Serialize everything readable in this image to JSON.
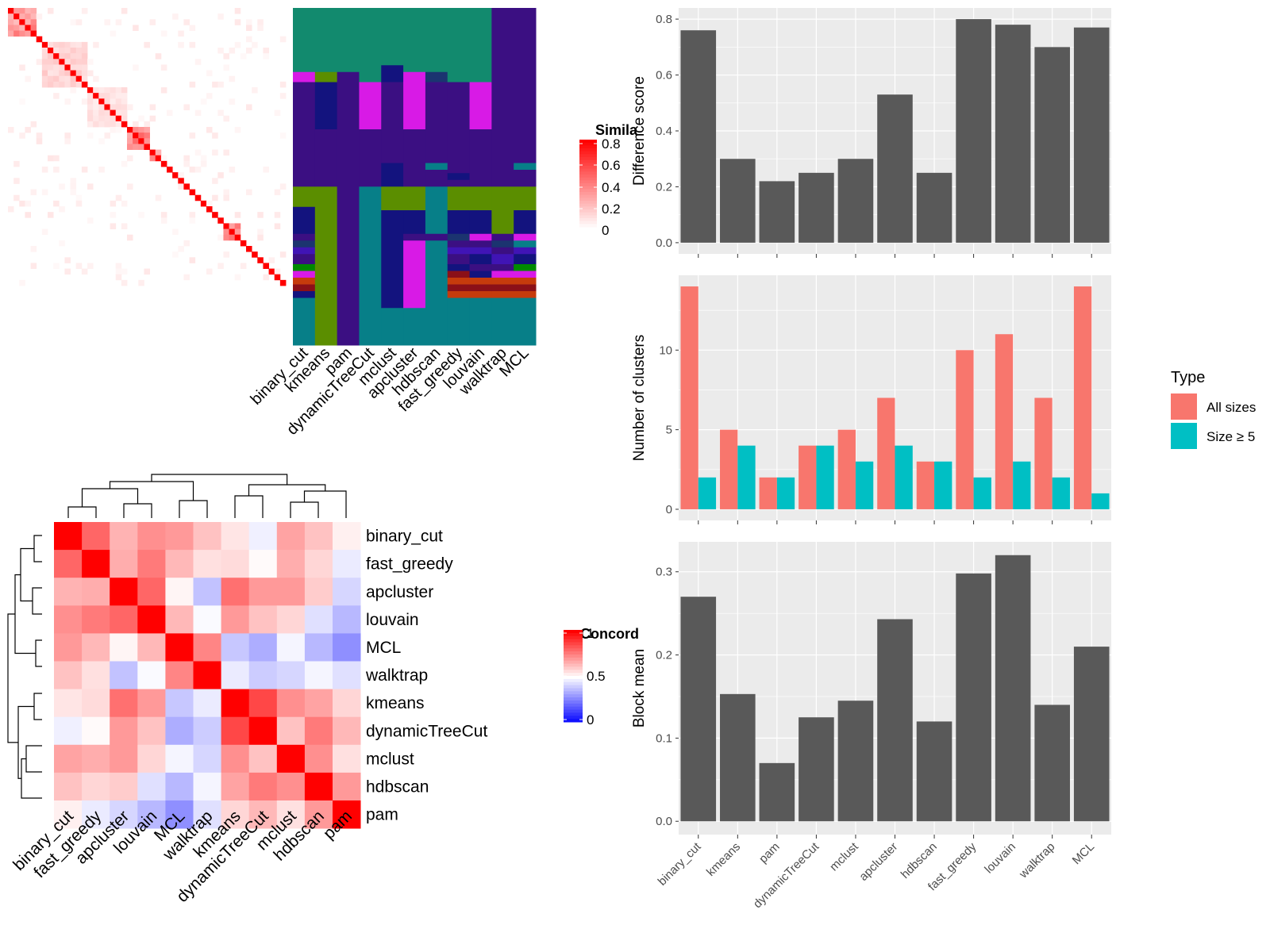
{
  "methods_top": [
    "binary_cut",
    "kmeans",
    "pam",
    "dynamicTreeCut",
    "mclust",
    "apcluster",
    "hdbscan",
    "fast_greedy",
    "louvain",
    "walktrap",
    "MCL"
  ],
  "similarity_legend": {
    "title": "Simila",
    "ticks": [
      "0.8",
      "0.6",
      "0.4",
      "0.2",
      "0"
    ],
    "colors": [
      "#ffffff",
      "#ff0000"
    ]
  },
  "concordance_legend": {
    "title": "Concord",
    "ticks": [
      "1",
      "0.5",
      "0"
    ],
    "colors": [
      "#0000ff",
      "#ffffff",
      "#ff0000"
    ]
  },
  "type_legend": {
    "title": "Type",
    "items": [
      {
        "label": "All sizes",
        "color": "#f8766d"
      },
      {
        "label": "Size ≥ 5",
        "color": "#00bfc4"
      }
    ]
  },
  "chart_data": [
    {
      "type": "heatmap",
      "name_hint": "term similarity matrix",
      "colorscale": [
        "#ffffff",
        "#ff0000"
      ],
      "range": [
        0,
        0.8
      ],
      "n": 49,
      "blocks": [
        [
          0,
          5,
          0.45
        ],
        [
          6,
          14,
          0.18
        ],
        [
          14,
          21,
          0.12
        ],
        [
          21,
          25,
          0.5
        ],
        [
          25,
          27,
          0.4
        ],
        [
          38,
          41,
          0.45
        ]
      ]
    },
    {
      "type": "heatmap",
      "name_hint": "cluster membership per method",
      "columns": [
        "binary_cut",
        "kmeans",
        "pam",
        "dynamicTreeCut",
        "mclust",
        "apcluster",
        "hdbscan",
        "fast_greedy",
        "louvain",
        "walktrap",
        "MCL"
      ],
      "palette": {
        "A": "#128a6e",
        "B": "#3b0f82",
        "C": "#d81ae6",
        "D": "#13137e",
        "E": "#5b8e00",
        "F": "#077f88",
        "G": "#1b3470",
        "H": "#c63b0c",
        "I": "#8b1018",
        "J": "#008a00",
        "K": "#4014b5"
      },
      "segments": [
        [
          "binary_cut",
          [
            [
              0,
              19,
              "A"
            ],
            [
              19,
              22,
              "C"
            ],
            [
              22,
              53,
              "B"
            ],
            [
              53,
              59,
              "E"
            ],
            [
              59,
              67,
              "D"
            ],
            [
              67,
              69,
              "B"
            ],
            [
              69,
              71,
              "G"
            ],
            [
              71,
              73,
              "K"
            ],
            [
              73,
              76,
              "B"
            ],
            [
              76,
              78,
              "J"
            ],
            [
              78,
              80,
              "C"
            ],
            [
              80,
              82,
              "H"
            ],
            [
              82,
              84,
              "I"
            ],
            [
              84,
              86,
              "D"
            ],
            [
              86,
              100,
              "F"
            ]
          ]
        ],
        [
          "kmeans",
          [
            [
              0,
              19,
              "A"
            ],
            [
              19,
              22,
              "E"
            ],
            [
              22,
              36,
              "D"
            ],
            [
              36,
              53,
              "B"
            ],
            [
              53,
              100,
              "E"
            ]
          ]
        ],
        [
          "pam",
          [
            [
              0,
              19,
              "A"
            ],
            [
              19,
              100,
              "B"
            ]
          ]
        ],
        [
          "dynamicTreeCut",
          [
            [
              0,
              22,
              "A"
            ],
            [
              22,
              36,
              "C"
            ],
            [
              36,
              53,
              "B"
            ],
            [
              53,
              100,
              "F"
            ]
          ]
        ],
        [
          "mclust",
          [
            [
              0,
              17,
              "A"
            ],
            [
              17,
              22,
              "D"
            ],
            [
              22,
              46,
              "B"
            ],
            [
              46,
              53,
              "D"
            ],
            [
              53,
              60,
              "E"
            ],
            [
              60,
              89,
              "D"
            ],
            [
              89,
              100,
              "F"
            ]
          ]
        ],
        [
          "apcluster",
          [
            [
              0,
              19,
              "A"
            ],
            [
              19,
              22,
              "C"
            ],
            [
              22,
              36,
              "C"
            ],
            [
              36,
              53,
              "B"
            ],
            [
              53,
              60,
              "E"
            ],
            [
              60,
              67,
              "D"
            ],
            [
              67,
              69,
              "B"
            ],
            [
              69,
              89,
              "C"
            ],
            [
              89,
              100,
              "F"
            ]
          ]
        ],
        [
          "hdbscan",
          [
            [
              0,
              19,
              "A"
            ],
            [
              19,
              22,
              "G"
            ],
            [
              22,
              46,
              "B"
            ],
            [
              46,
              48,
              "F"
            ],
            [
              48,
              53,
              "B"
            ],
            [
              53,
              67,
              "F"
            ],
            [
              67,
              69,
              "B"
            ],
            [
              69,
              100,
              "F"
            ]
          ]
        ],
        [
          "fast_greedy",
          [
            [
              0,
              22,
              "A"
            ],
            [
              22,
              49,
              "B"
            ],
            [
              49,
              51,
              "D"
            ],
            [
              51,
              53,
              "B"
            ],
            [
              53,
              60,
              "E"
            ],
            [
              60,
              67,
              "D"
            ],
            [
              67,
              69,
              "G"
            ],
            [
              69,
              71,
              "B"
            ],
            [
              71,
              73,
              "K"
            ],
            [
              73,
              76,
              "B"
            ],
            [
              76,
              78,
              "D"
            ],
            [
              78,
              80,
              "I"
            ],
            [
              80,
              82,
              "H"
            ],
            [
              82,
              84,
              "I"
            ],
            [
              84,
              86,
              "H"
            ],
            [
              86,
              100,
              "F"
            ]
          ]
        ],
        [
          "louvain",
          [
            [
              0,
              22,
              "A"
            ],
            [
              22,
              36,
              "C"
            ],
            [
              36,
              53,
              "B"
            ],
            [
              53,
              60,
              "E"
            ],
            [
              60,
              67,
              "D"
            ],
            [
              67,
              69,
              "C"
            ],
            [
              69,
              71,
              "B"
            ],
            [
              71,
              73,
              "K"
            ],
            [
              73,
              76,
              "D"
            ],
            [
              76,
              78,
              "B"
            ],
            [
              78,
              80,
              "D"
            ],
            [
              80,
              82,
              "H"
            ],
            [
              82,
              84,
              "I"
            ],
            [
              84,
              86,
              "H"
            ],
            [
              86,
              100,
              "F"
            ]
          ]
        ],
        [
          "walktrap",
          [
            [
              0,
              22,
              "B"
            ],
            [
              22,
              53,
              "B"
            ],
            [
              53,
              60,
              "E"
            ],
            [
              60,
              67,
              "E"
            ],
            [
              67,
              69,
              "B"
            ],
            [
              69,
              71,
              "G"
            ],
            [
              71,
              73,
              "B"
            ],
            [
              73,
              76,
              "K"
            ],
            [
              76,
              78,
              "B"
            ],
            [
              78,
              80,
              "C"
            ],
            [
              80,
              82,
              "H"
            ],
            [
              82,
              84,
              "I"
            ],
            [
              84,
              86,
              "H"
            ],
            [
              86,
              100,
              "F"
            ]
          ]
        ],
        [
          "MCL",
          [
            [
              0,
              46,
              "B"
            ],
            [
              46,
              48,
              "F"
            ],
            [
              48,
              53,
              "B"
            ],
            [
              53,
              60,
              "E"
            ],
            [
              60,
              67,
              "D"
            ],
            [
              67,
              69,
              "C"
            ],
            [
              69,
              71,
              "F"
            ],
            [
              71,
              73,
              "K"
            ],
            [
              73,
              76,
              "D"
            ],
            [
              76,
              78,
              "J"
            ],
            [
              78,
              80,
              "C"
            ],
            [
              80,
              82,
              "H"
            ],
            [
              82,
              84,
              "I"
            ],
            [
              84,
              86,
              "H"
            ],
            [
              86,
              100,
              "F"
            ]
          ]
        ]
      ]
    },
    {
      "type": "heatmap",
      "name_hint": "concordance between methods",
      "rows": [
        "binary_cut",
        "fast_greedy",
        "apcluster",
        "louvain",
        "MCL",
        "walktrap",
        "kmeans",
        "dynamicTreeCut",
        "mclust",
        "hdbscan",
        "pam"
      ],
      "columns": [
        "binary_cut",
        "fast_greedy",
        "apcluster",
        "louvain",
        "MCL",
        "walktrap",
        "kmeans",
        "dynamicTreeCut",
        "mclust",
        "hdbscan",
        "pam"
      ],
      "range": [
        0,
        1
      ],
      "values": [
        [
          1.0,
          0.8,
          0.65,
          0.72,
          0.7,
          0.62,
          0.55,
          0.47,
          0.68,
          0.62,
          0.53
        ],
        [
          0.8,
          1.0,
          0.66,
          0.76,
          0.64,
          0.56,
          0.57,
          0.51,
          0.66,
          0.58,
          0.46
        ],
        [
          0.65,
          0.66,
          1.0,
          0.8,
          0.52,
          0.38,
          0.78,
          0.7,
          0.7,
          0.6,
          0.42
        ],
        [
          0.72,
          0.76,
          0.8,
          1.0,
          0.64,
          0.49,
          0.7,
          0.62,
          0.58,
          0.44,
          0.36
        ],
        [
          0.7,
          0.64,
          0.52,
          0.64,
          1.0,
          0.74,
          0.39,
          0.34,
          0.48,
          0.36,
          0.28
        ],
        [
          0.62,
          0.56,
          0.38,
          0.49,
          0.74,
          1.0,
          0.46,
          0.4,
          0.42,
          0.48,
          0.44
        ],
        [
          0.55,
          0.57,
          0.78,
          0.7,
          0.39,
          0.46,
          1.0,
          0.86,
          0.72,
          0.68,
          0.58
        ],
        [
          0.47,
          0.51,
          0.7,
          0.62,
          0.34,
          0.4,
          0.86,
          1.0,
          0.62,
          0.76,
          0.64
        ],
        [
          0.68,
          0.66,
          0.7,
          0.58,
          0.48,
          0.42,
          0.72,
          0.62,
          1.0,
          0.72,
          0.56
        ],
        [
          0.62,
          0.58,
          0.6,
          0.44,
          0.36,
          0.48,
          0.68,
          0.76,
          0.72,
          1.0,
          0.7
        ],
        [
          0.53,
          0.46,
          0.42,
          0.36,
          0.28,
          0.44,
          0.58,
          0.64,
          0.56,
          0.7,
          1.0
        ]
      ]
    },
    {
      "type": "bar",
      "categories": [
        "binary_cut",
        "kmeans",
        "pam",
        "dynamicTreeCut",
        "mclust",
        "apcluster",
        "hdbscan",
        "fast_greedy",
        "louvain",
        "walktrap",
        "MCL"
      ],
      "values": [
        0.76,
        0.3,
        0.22,
        0.25,
        0.3,
        0.53,
        0.25,
        0.8,
        0.78,
        0.7,
        0.77
      ],
      "ylabel": "Difference score",
      "ylim": [
        -0.04,
        0.84
      ],
      "yticks": [
        "0.0",
        "0.2",
        "0.4",
        "0.6",
        "0.8"
      ],
      "color": "#595959"
    },
    {
      "type": "bar",
      "categories": [
        "binary_cut",
        "kmeans",
        "pam",
        "dynamicTreeCut",
        "mclust",
        "apcluster",
        "hdbscan",
        "fast_greedy",
        "louvain",
        "walktrap",
        "MCL"
      ],
      "series": [
        {
          "name": "All sizes",
          "values": [
            14,
            5,
            2,
            4,
            5,
            7,
            3,
            10,
            11,
            7,
            14
          ],
          "color": "#f8766d"
        },
        {
          "name": "Size ≥ 5",
          "values": [
            2,
            4,
            2,
            4,
            3,
            4,
            3,
            2,
            3,
            2,
            1
          ],
          "color": "#00bfc4"
        }
      ],
      "ylabel": "Number of clusters",
      "ylim": [
        -0.7,
        14.7
      ],
      "yticks": [
        "0",
        "5",
        "10"
      ]
    },
    {
      "type": "bar",
      "categories": [
        "binary_cut",
        "kmeans",
        "pam",
        "dynamicTreeCut",
        "mclust",
        "apcluster",
        "hdbscan",
        "fast_greedy",
        "louvain",
        "walktrap",
        "MCL"
      ],
      "values": [
        0.27,
        0.153,
        0.07,
        0.125,
        0.145,
        0.243,
        0.12,
        0.298,
        0.32,
        0.14,
        0.21
      ],
      "ylabel": "Block mean",
      "ylim": [
        -0.016,
        0.336
      ],
      "yticks": [
        "0.0",
        "0.1",
        "0.2",
        "0.3"
      ],
      "color": "#595959"
    }
  ]
}
